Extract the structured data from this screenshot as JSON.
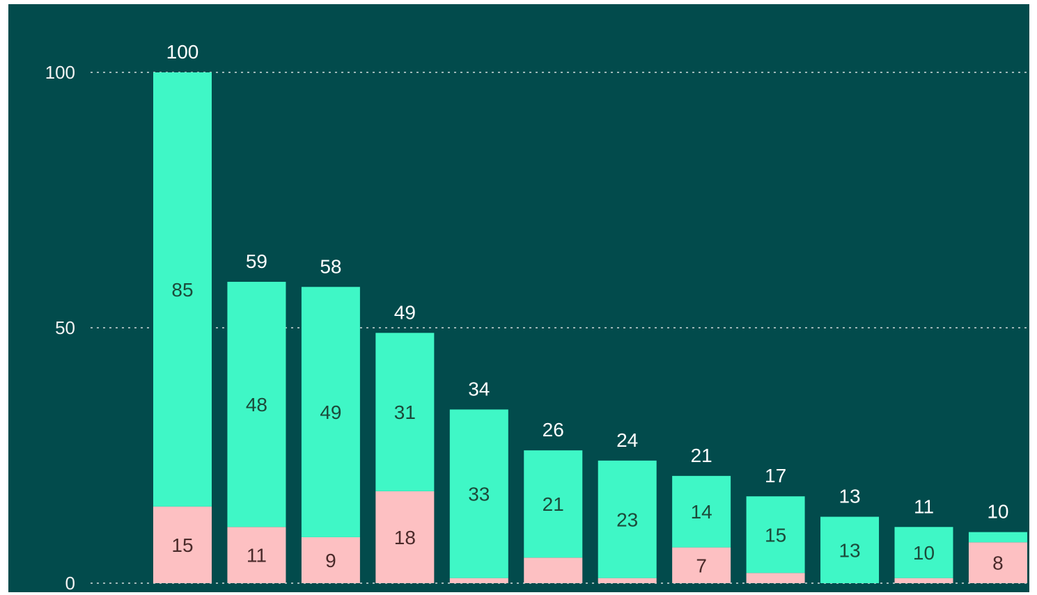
{
  "chart_data": {
    "type": "bar",
    "stacked": true,
    "categories": [
      "",
      "",
      "",
      "",
      "",
      "",
      "",
      "",
      "",
      "",
      "",
      ""
    ],
    "series": [
      {
        "color": "#fdc0c2",
        "label_color": "#4a2a2a",
        "values": [
          15,
          11,
          9,
          18,
          1,
          5,
          1,
          7,
          2,
          0,
          1,
          8
        ],
        "labels": [
          "15",
          "11",
          "9",
          "18",
          "",
          "",
          "",
          "7",
          "",
          "",
          "",
          "8"
        ]
      },
      {
        "color": "#3ff7c6",
        "label_color": "#1c4a3a",
        "values": [
          85,
          48,
          49,
          31,
          33,
          21,
          23,
          14,
          15,
          13,
          10,
          2
        ],
        "labels": [
          "85",
          "48",
          "49",
          "31",
          "33",
          "21",
          "23",
          "14",
          "15",
          "13",
          "10",
          ""
        ]
      }
    ],
    "totals": [
      100,
      59,
      58,
      49,
      34,
      26,
      24,
      21,
      17,
      13,
      11,
      10
    ],
    "ylim": [
      0,
      100
    ],
    "yticks": [
      0,
      50,
      100
    ],
    "grid": true,
    "legend": "none",
    "title": "",
    "xlabel": "",
    "ylabel": ""
  }
}
